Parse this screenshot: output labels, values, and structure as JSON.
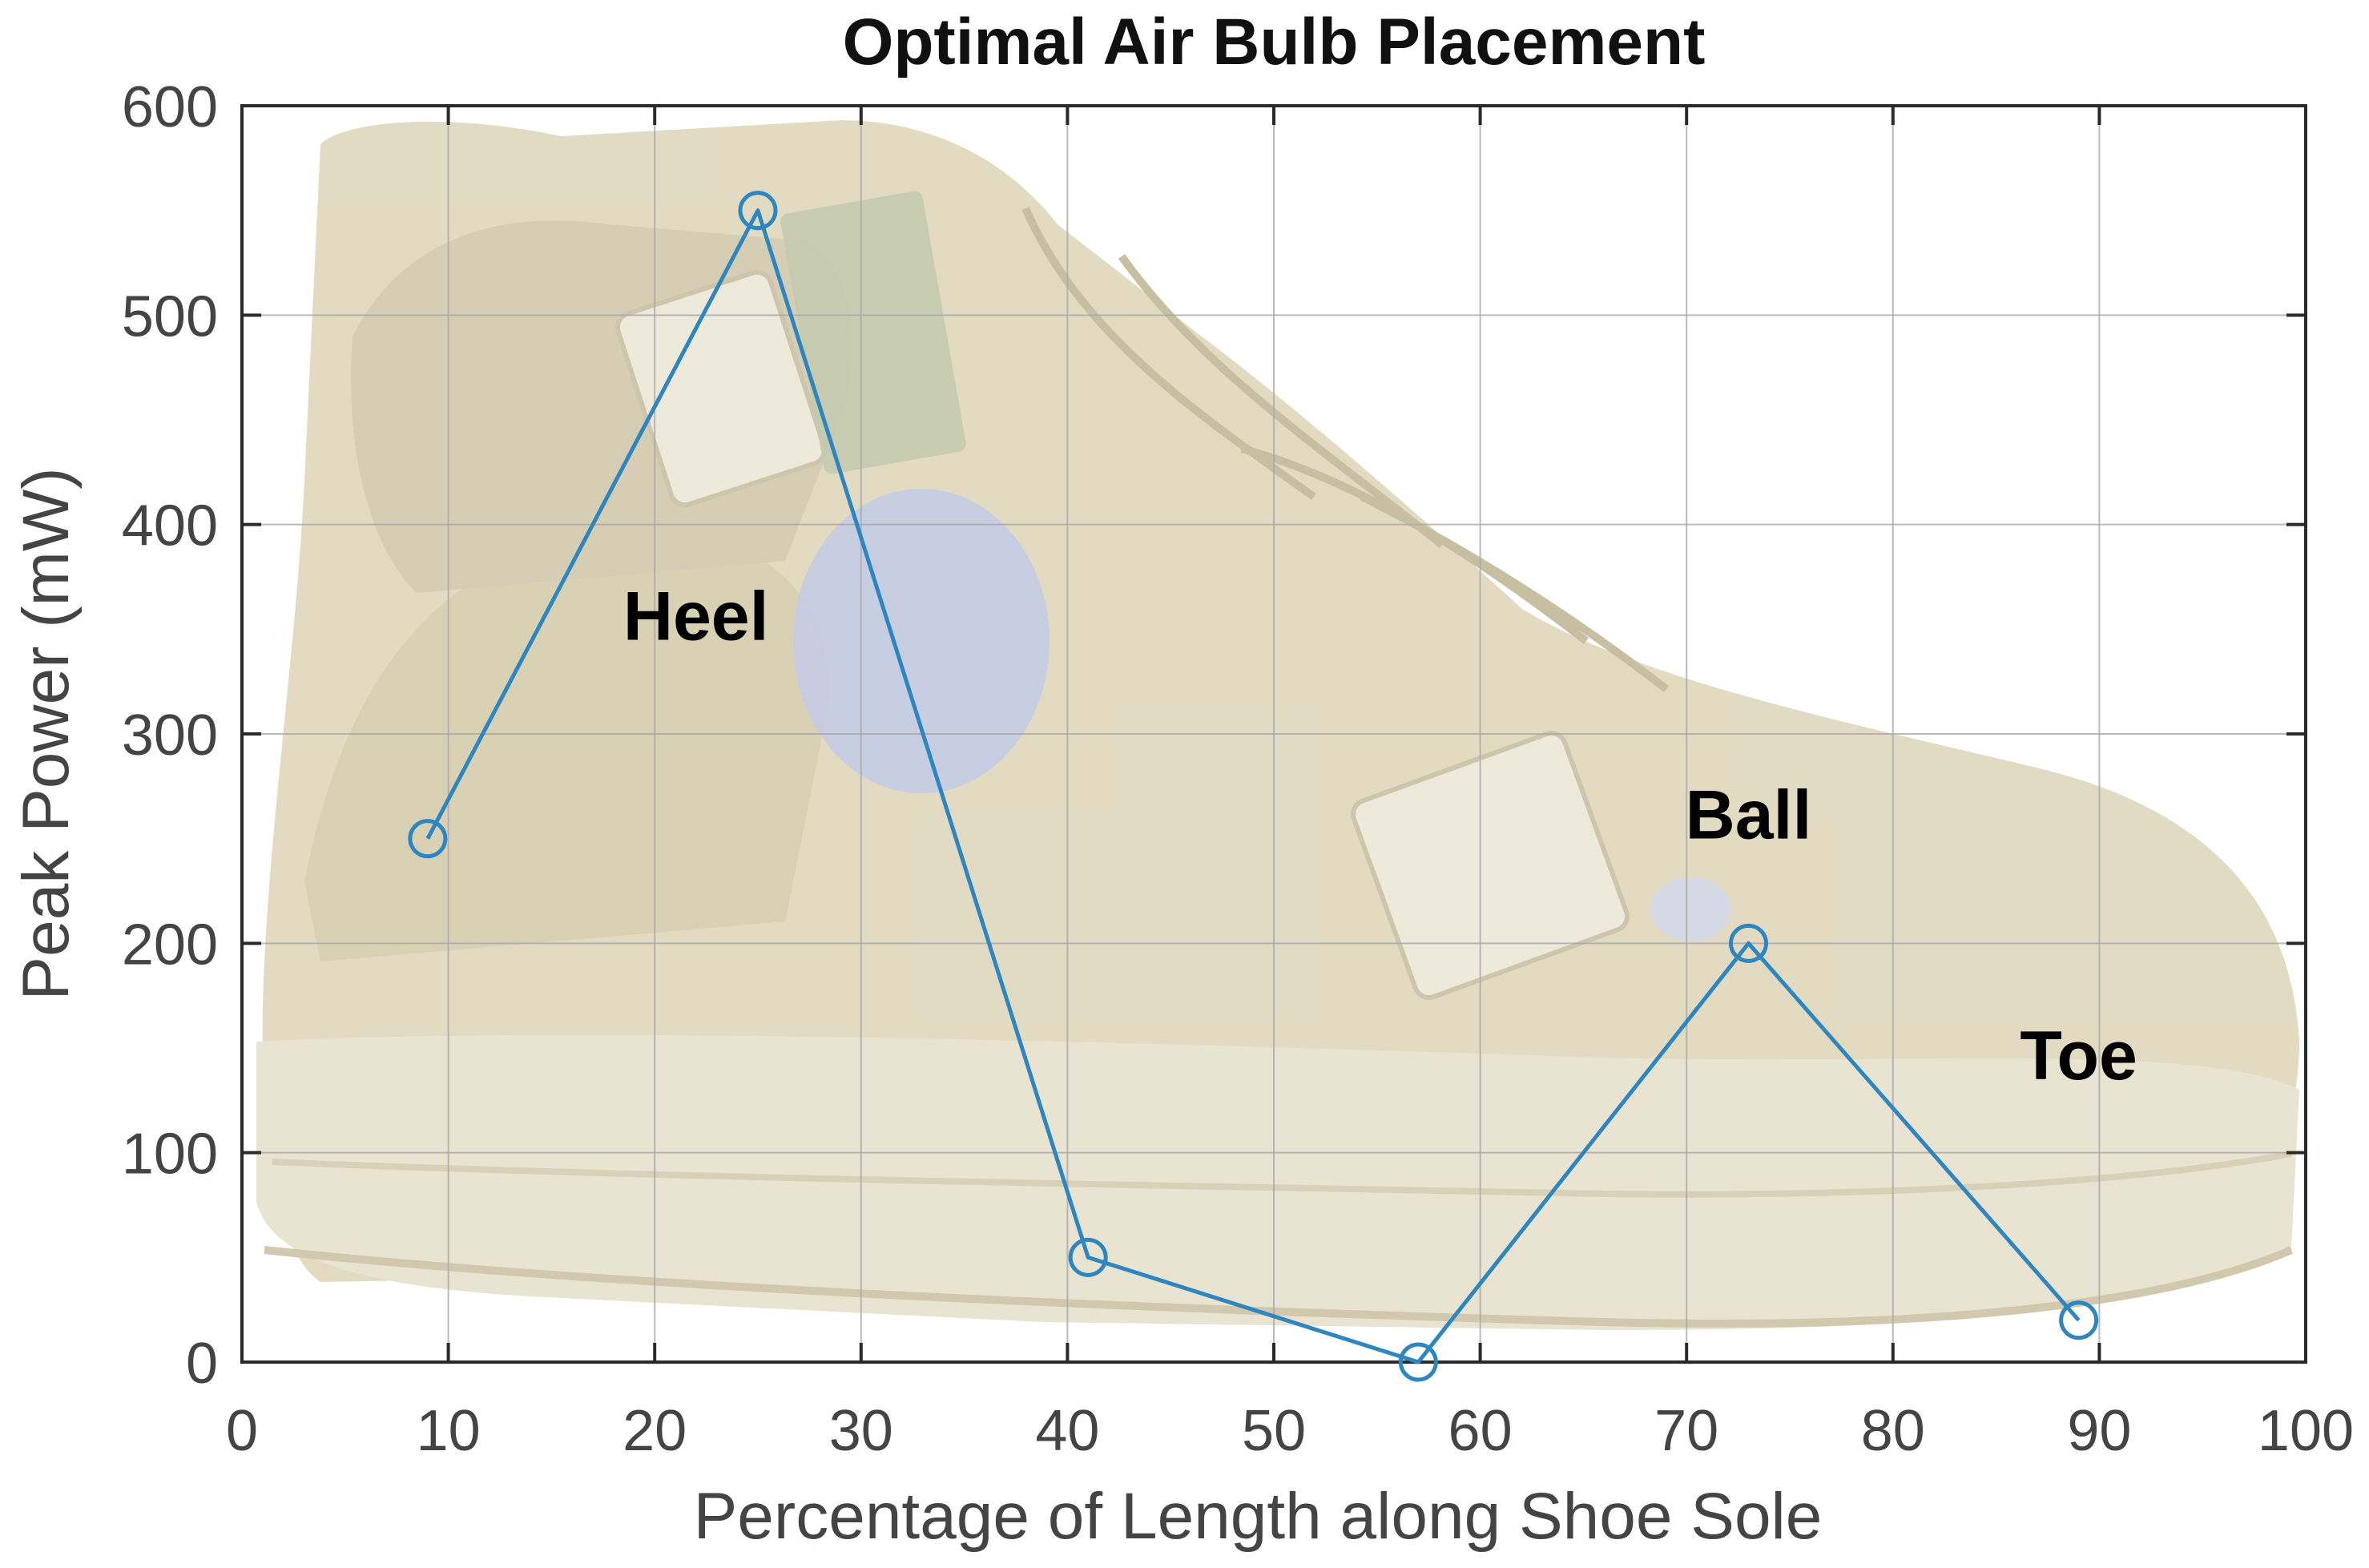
{
  "chart_data": {
    "type": "line",
    "title": "Optimal Air Bulb Placement",
    "xlabel": "Percentage of Length along Shoe Sole",
    "ylabel": "Peak Power (mW)",
    "xlim": [
      0,
      100
    ],
    "ylim": [
      0,
      600
    ],
    "xticks": [
      0,
      10,
      20,
      30,
      40,
      50,
      60,
      70,
      80,
      90,
      100
    ],
    "yticks": [
      0,
      100,
      200,
      300,
      400,
      500,
      600
    ],
    "grid": true,
    "background": "photo of a tan hiking boot with sensor modules mounted on its side",
    "series": [
      {
        "color": "#2e86c1",
        "marker": "circle",
        "x": [
          9,
          25,
          41,
          57,
          73,
          89
        ],
        "y": [
          250,
          550,
          50,
          0,
          200,
          20
        ]
      }
    ],
    "annotations": [
      {
        "text": "Heel",
        "x": 22,
        "y": 345
      },
      {
        "text": "Ball",
        "x": 73,
        "y": 250
      },
      {
        "text": "Toe",
        "x": 89,
        "y": 135
      }
    ]
  }
}
